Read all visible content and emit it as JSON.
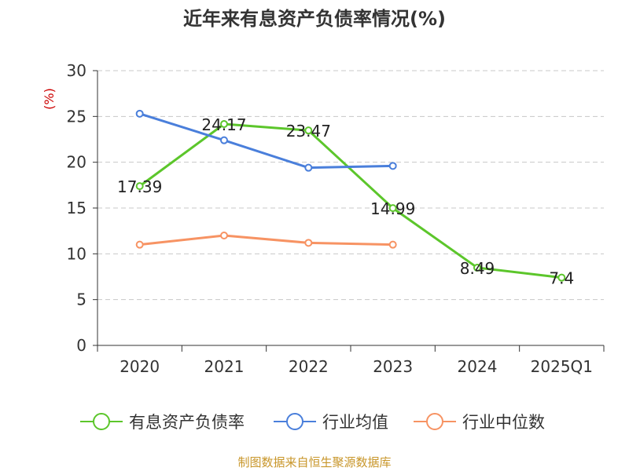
{
  "chart_data": {
    "type": "line",
    "title": "近年来有息资产负债率情况(%)",
    "ylabel": "(%)",
    "xlabel": "",
    "categories": [
      "2020",
      "2021",
      "2022",
      "2023",
      "2024",
      "2025Q1"
    ],
    "ylim": [
      0,
      30
    ],
    "yticks": [
      0,
      5,
      10,
      15,
      20,
      25,
      30
    ],
    "grid": true,
    "legend_position": "bottom",
    "series": [
      {
        "name": "有息资产负债率",
        "color": "#5cc62b",
        "values": [
          17.39,
          24.17,
          23.47,
          14.99,
          8.49,
          7.4
        ],
        "labels": [
          "17.39",
          "24.17",
          "23.47",
          "14.99",
          "8.49",
          "7.4"
        ]
      },
      {
        "name": "行业均值",
        "color": "#4a7fdb",
        "values": [
          25.3,
          22.4,
          19.4,
          19.6,
          null,
          null
        ]
      },
      {
        "name": "行业中位数",
        "color": "#f79363",
        "values": [
          11.0,
          12.0,
          11.2,
          11.0,
          null,
          null
        ]
      }
    ]
  },
  "footer": {
    "source": "制图数据来自恒生聚源数据库"
  }
}
